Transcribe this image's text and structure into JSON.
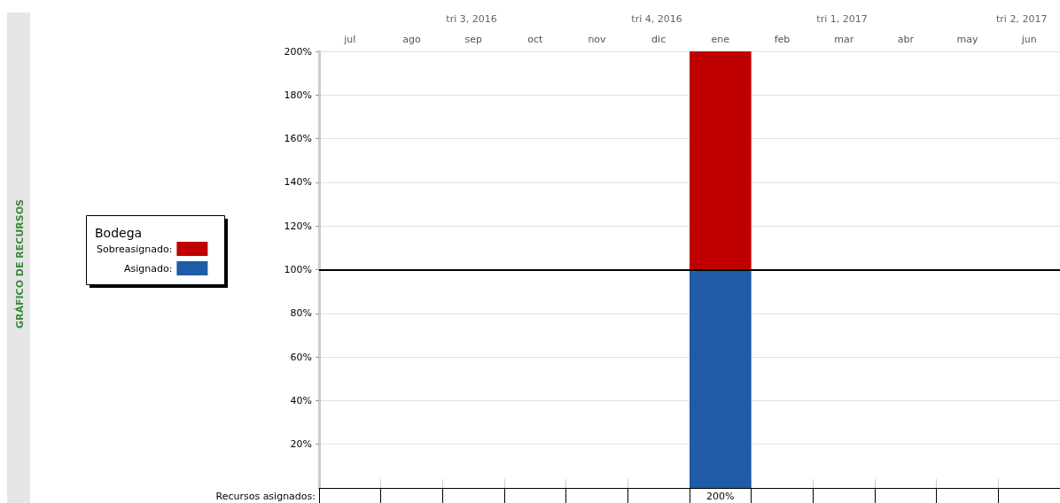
{
  "chart_data": {
    "type": "bar",
    "title": "GRÁFICO DE RECURSOS",
    "legend_title": "Bodega",
    "categories": [
      "jul",
      "ago",
      "sep",
      "oct",
      "nov",
      "dic",
      "ene",
      "feb",
      "mar",
      "abr",
      "may",
      "jun"
    ],
    "series": [
      {
        "name": "Asignado:",
        "color": "#1f5ba6",
        "values": [
          0,
          0,
          0,
          0,
          0,
          0,
          100,
          0,
          0,
          0,
          0,
          0
        ]
      },
      {
        "name": "Sobreasignado:",
        "color": "#c00000",
        "values": [
          0,
          0,
          0,
          0,
          0,
          0,
          100,
          0,
          0,
          0,
          0,
          0
        ]
      }
    ],
    "stacked": true,
    "ylim": [
      0,
      200
    ],
    "yticks": [
      {
        "value": 20,
        "label": "20%"
      },
      {
        "value": 40,
        "label": "40%"
      },
      {
        "value": 60,
        "label": "60%"
      },
      {
        "value": 80,
        "label": "80%"
      },
      {
        "value": 100,
        "label": "100%"
      },
      {
        "value": 120,
        "label": "120%"
      },
      {
        "value": 140,
        "label": "140%"
      },
      {
        "value": 160,
        "label": "160%"
      },
      {
        "value": 180,
        "label": "180%"
      },
      {
        "value": 200,
        "label": "200%"
      }
    ],
    "ref_lines": [
      {
        "axis": "y",
        "value": 100,
        "color": "#000000"
      }
    ],
    "totals": [
      null,
      null,
      null,
      null,
      null,
      null,
      "200%",
      null,
      null,
      null,
      null,
      null
    ],
    "annotations": [
      "Recursos asignados:",
      "tri 3, 2016",
      "tri 4, 2016",
      "tri 1, 2017",
      "tri 2, 2017"
    ],
    "grid": "y",
    "legend": "left"
  }
}
